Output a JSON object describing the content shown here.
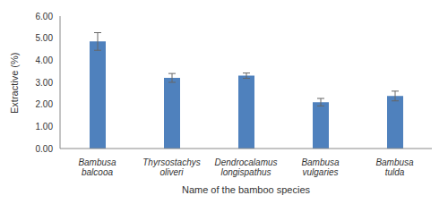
{
  "chart_data": {
    "type": "bar",
    "categories": [
      "Bambusa balcooa",
      "Thyrsostachys oliveri",
      "Dendrocalamus longispathus",
      "Bambusa vulgaries",
      "Bambusa tulda"
    ],
    "values": [
      4.85,
      3.2,
      3.3,
      2.1,
      2.38
    ],
    "errors": [
      0.4,
      0.2,
      0.12,
      0.17,
      0.22
    ],
    "color": "#4f81bd",
    "xlabel": "Name of the bamboo species",
    "ylabel": "Extractive (%)",
    "ylim": [
      0,
      6
    ],
    "yticks": [
      {
        "value": 0,
        "label": "0.00"
      },
      {
        "value": 1,
        "label": "1.00"
      },
      {
        "value": 2,
        "label": "2.00"
      },
      {
        "value": 3,
        "label": "3.00"
      },
      {
        "value": 4,
        "label": "4.00"
      },
      {
        "value": 5,
        "label": "5.00"
      },
      {
        "value": 6,
        "label": "6.00"
      }
    ],
    "grid": false
  }
}
